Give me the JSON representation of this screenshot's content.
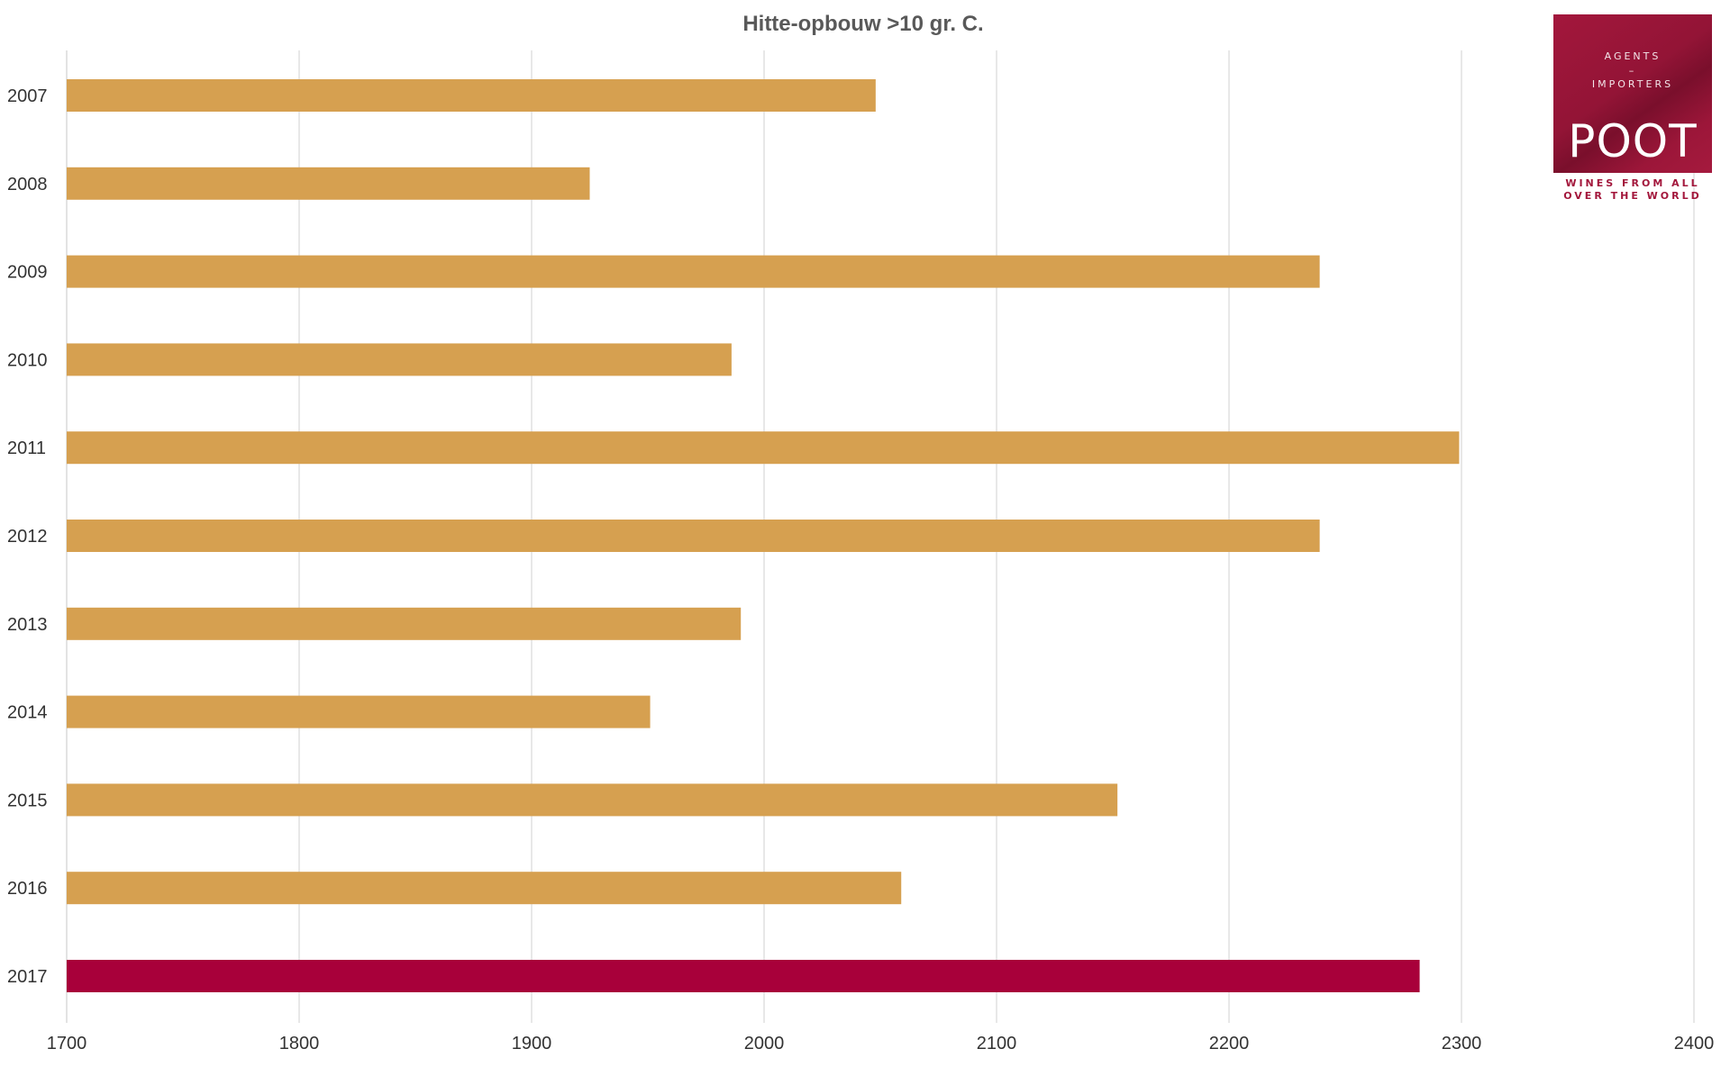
{
  "chart_data": {
    "type": "bar",
    "orientation": "horizontal",
    "title": "Hitte-opbouw >10 gr. C.",
    "xlabel": "",
    "ylabel": "",
    "categories": [
      "2007",
      "2008",
      "2009",
      "2010",
      "2011",
      "2012",
      "2013",
      "2014",
      "2015",
      "2016",
      "2017"
    ],
    "values": [
      2048,
      1925,
      2239,
      1986,
      2299,
      2239,
      1990,
      1951,
      2152,
      2059,
      2282
    ],
    "bar_colors": [
      "#d6a050",
      "#d6a050",
      "#d6a050",
      "#d6a050",
      "#d6a050",
      "#d6a050",
      "#d6a050",
      "#d6a050",
      "#d6a050",
      "#d6a050",
      "#a8003a"
    ],
    "xlim": [
      1700,
      2400
    ],
    "xticks": [
      "1700",
      "1800",
      "1900",
      "2000",
      "2100",
      "2200",
      "2300",
      "2400"
    ],
    "grid": "vertical",
    "legend": "none"
  },
  "colors": {
    "bar": "#d6a050",
    "highlight_bar": "#a8003a",
    "brand": "#a3173c"
  },
  "logo": {
    "line1": "AGENTS",
    "line2": "–",
    "line3": "IMPORTERS",
    "name": "POOT",
    "tagline1": "WINES FROM ALL",
    "tagline2": "OVER THE WORLD"
  }
}
